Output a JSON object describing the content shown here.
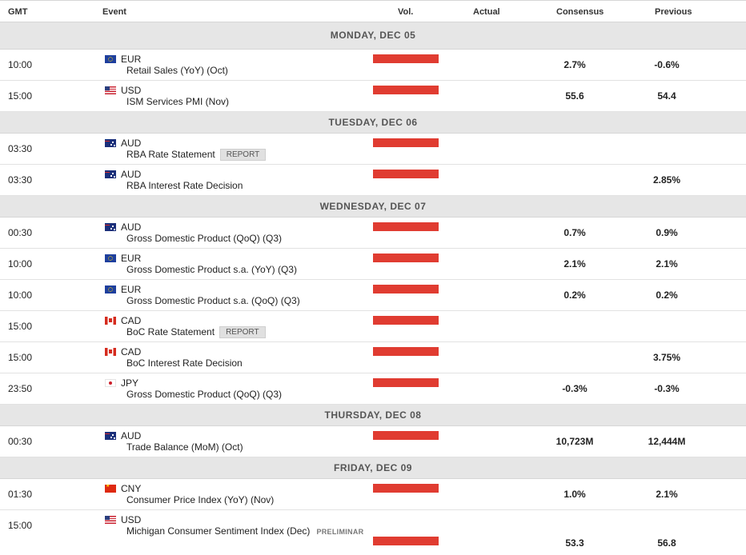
{
  "header": {
    "gmt": "GMT",
    "event": "Event",
    "vol": "Vol.",
    "actual": "Actual",
    "consensus": "Consensus",
    "previous": "Previous"
  },
  "colors": {
    "volume_high": "#e03c31",
    "day_band": "#e6e6e6"
  },
  "days": [
    {
      "label": "MONDAY, DEC 05"
    },
    {
      "label": "TUESDAY, DEC 06"
    },
    {
      "label": "WEDNESDAY, DEC 07"
    },
    {
      "label": "THURSDAY, DEC 08"
    },
    {
      "label": "FRIDAY, DEC 09"
    }
  ],
  "events": [
    {
      "time": "10:00",
      "flag": "eu-flag-icon",
      "currency": "EUR",
      "event": "Retail Sales (YoY) (Oct)",
      "badge": "",
      "actual": "",
      "consensus": "2.7%",
      "previous": "-0.6%"
    },
    {
      "time": "15:00",
      "flag": "us-flag-icon",
      "currency": "USD",
      "event": "ISM Services PMI (Nov)",
      "badge": "",
      "actual": "",
      "consensus": "55.6",
      "previous": "54.4"
    },
    {
      "time": "03:30",
      "flag": "au-flag-icon",
      "currency": "AUD",
      "event": "RBA Rate Statement",
      "badge": "REPORT",
      "actual": "",
      "consensus": "",
      "previous": ""
    },
    {
      "time": "03:30",
      "flag": "au-flag-icon",
      "currency": "AUD",
      "event": "RBA Interest Rate Decision",
      "badge": "",
      "actual": "",
      "consensus": "",
      "previous": "2.85%"
    },
    {
      "time": "00:30",
      "flag": "au-flag-icon",
      "currency": "AUD",
      "event": "Gross Domestic Product (QoQ) (Q3)",
      "badge": "",
      "actual": "",
      "consensus": "0.7%",
      "previous": "0.9%"
    },
    {
      "time": "10:00",
      "flag": "eu-flag-icon",
      "currency": "EUR",
      "event": "Gross Domestic Product s.a. (YoY) (Q3)",
      "badge": "",
      "actual": "",
      "consensus": "2.1%",
      "previous": "2.1%"
    },
    {
      "time": "10:00",
      "flag": "eu-flag-icon",
      "currency": "EUR",
      "event": "Gross Domestic Product s.a. (QoQ) (Q3)",
      "badge": "",
      "actual": "",
      "consensus": "0.2%",
      "previous": "0.2%"
    },
    {
      "time": "15:00",
      "flag": "ca-flag-icon",
      "currency": "CAD",
      "event": "BoC Rate Statement",
      "badge": "REPORT",
      "actual": "",
      "consensus": "",
      "previous": ""
    },
    {
      "time": "15:00",
      "flag": "ca-flag-icon",
      "currency": "CAD",
      "event": "BoC Interest Rate Decision",
      "badge": "",
      "actual": "",
      "consensus": "",
      "previous": "3.75%"
    },
    {
      "time": "23:50",
      "flag": "jp-flag-icon",
      "currency": "JPY",
      "event": "Gross Domestic Product (QoQ) (Q3)",
      "badge": "",
      "actual": "",
      "consensus": "-0.3%",
      "previous": "-0.3%"
    },
    {
      "time": "00:30",
      "flag": "au-flag-icon",
      "currency": "AUD",
      "event": "Trade Balance (MoM) (Oct)",
      "badge": "",
      "actual": "",
      "consensus": "10,723M",
      "previous": "12,444M"
    },
    {
      "time": "01:30",
      "flag": "cn-flag-icon",
      "currency": "CNY",
      "event": "Consumer Price Index (YoY) (Nov)",
      "badge": "",
      "actual": "",
      "consensus": "1.0%",
      "previous": "2.1%"
    },
    {
      "time": "15:00",
      "flag": "us-flag-icon",
      "currency": "USD",
      "event": "Michigan Consumer Sentiment Index (Dec)",
      "prelim": "PRELIMINAR",
      "badge": "",
      "actual": "",
      "consensus": "53.3",
      "previous": "56.8"
    }
  ]
}
